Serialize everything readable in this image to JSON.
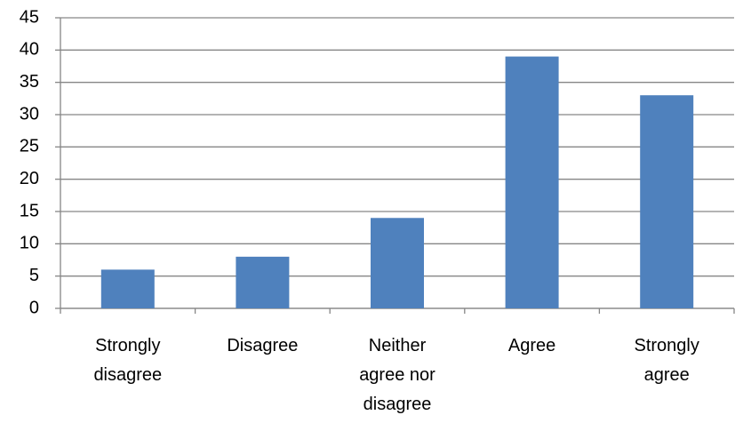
{
  "chart_data": {
    "type": "bar",
    "categories": [
      "Strongly disagree",
      "Disagree",
      "Neither agree nor disagree",
      "Agree",
      "Strongly agree"
    ],
    "values": [
      6,
      8,
      14,
      39,
      33
    ],
    "color": "#4f81bd",
    "ylim": [
      0,
      45
    ],
    "yticks": [
      0,
      5,
      10,
      15,
      20,
      25,
      30,
      35,
      40,
      45
    ],
    "grid": true
  }
}
